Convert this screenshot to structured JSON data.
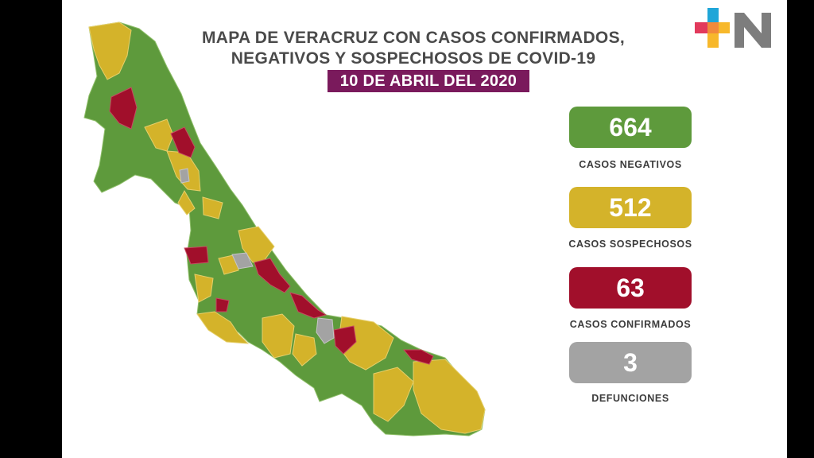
{
  "header": {
    "title_line1": "MAPA DE VERACRUZ CON CASOS CONFIRMADOS,",
    "title_line2": "NEGATIVOS Y SOSPECHOSOS DE COVID-19",
    "date": "10 DE ABRIL DEL 2020"
  },
  "stats": [
    {
      "value": "664",
      "label": "CASOS NEGATIVOS",
      "color": "#5e9a3c"
    },
    {
      "value": "512",
      "label": "CASOS SOSPECHOSOS",
      "color": "#d4b32a"
    },
    {
      "value": "63",
      "label": "CASOS CONFIRMADOS",
      "color": "#a10f2b"
    },
    {
      "value": "3",
      "label": "DEFUNCIONES",
      "color": "#a3a3a3"
    }
  ],
  "map": {
    "region": "Veracruz",
    "colors": {
      "negative": "#5e9a3c",
      "suspected": "#d4b32a",
      "confirmed": "#a10f2b",
      "death": "#a3a3a3"
    }
  },
  "logo": {
    "name": "plus-n-logo",
    "colors": [
      "#e23a5c",
      "#f7b82b",
      "#7ab648",
      "#1fa6d8",
      "#7d7d7d"
    ]
  }
}
